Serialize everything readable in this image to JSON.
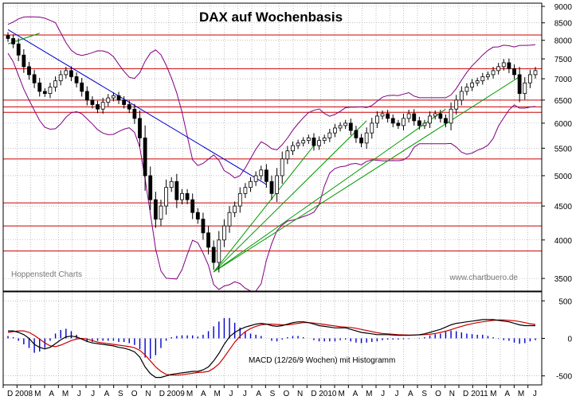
{
  "title": "DAX auf Wochenbasis",
  "watermark_left": "Hoppenstedt Charts",
  "watermark_right": "www.chartbuero.de",
  "macd_label": "MACD (12/26/9 Wochen) mit Histogramm",
  "colors": {
    "price": "#000000",
    "bollinger": "#800080",
    "horizontal_lines": "#cc0000",
    "trend_down": "#0000cc",
    "trend_up": "#009900",
    "macd_line": "#000000",
    "signal_line": "#cc0000",
    "histogram": "#0000cc",
    "grid": "#999999"
  },
  "chart_data": [
    {
      "type": "candlestick",
      "title": "DAX auf Wochenbasis",
      "y_ticks": [
        3500,
        4000,
        4500,
        5000,
        5500,
        6000,
        6500,
        7000,
        7500,
        8000,
        8500,
        9000
      ],
      "ylim": [
        3350,
        9100
      ],
      "x_labels": [
        "D",
        "2008",
        "M",
        "A",
        "M",
        "J",
        "J",
        "A",
        "S",
        "O",
        "N",
        "D",
        "2009",
        "M",
        "A",
        "M",
        "J",
        "J",
        "A",
        "S",
        "O",
        "N",
        "D",
        "2010",
        "M",
        "A",
        "M",
        "J",
        "J",
        "A",
        "S",
        "O",
        "N",
        "D",
        "2011",
        "M",
        "A",
        "M",
        "J"
      ],
      "horizontal_levels": [
        8150,
        7250,
        6500,
        6350,
        6230,
        5300,
        4550,
        4200,
        3850
      ],
      "close_series": [
        8050,
        7900,
        7600,
        7300,
        7100,
        6900,
        6700,
        6650,
        6800,
        6950,
        7100,
        7200,
        7050,
        6900,
        6700,
        6500,
        6400,
        6300,
        6450,
        6550,
        6600,
        6500,
        6400,
        6300,
        6100,
        5700,
        5000,
        4600,
        4300,
        4500,
        4800,
        4900,
        4600,
        4700,
        4600,
        4400,
        4300,
        4100,
        3900,
        3700,
        4000,
        4200,
        4400,
        4500,
        4700,
        4800,
        4900,
        5000,
        5100,
        4900,
        4700,
        5000,
        5300,
        5450,
        5550,
        5600,
        5650,
        5700,
        5550,
        5650,
        5700,
        5800,
        5900,
        5950,
        6000,
        5850,
        5700,
        5600,
        5800,
        6000,
        6150,
        6200,
        6100,
        6000,
        5950,
        6100,
        6200,
        6050,
        5950,
        6000,
        6150,
        6200,
        6100,
        6000,
        6300,
        6500,
        6700,
        6800,
        6900,
        6950,
        7050,
        7100,
        7200,
        7300,
        7400,
        7250,
        7100,
        6650,
        6900,
        7100,
        7200
      ]
    },
    {
      "type": "line",
      "title": "MACD (12/26/9 Wochen) mit Histogramm",
      "y_ticks": [
        -500,
        0,
        500
      ],
      "ylim": [
        -620,
        620
      ],
      "series": [
        {
          "name": "MACD",
          "values": [
            100,
            100,
            80,
            50,
            0,
            -80,
            -120,
            -140,
            -120,
            -70,
            -20,
            20,
            30,
            20,
            -10,
            -40,
            -60,
            -70,
            -80,
            -90,
            -100,
            -120,
            -130,
            -150,
            -180,
            -250,
            -380,
            -470,
            -520,
            -520,
            -500,
            -480,
            -470,
            -460,
            -450,
            -440,
            -440,
            -420,
            -380,
            -300,
            -200,
            -80,
            20,
            80,
            120,
            150,
            170,
            190,
            200,
            190,
            170,
            160,
            170,
            190,
            210,
            220,
            220,
            210,
            190,
            170,
            160,
            150,
            140,
            140,
            140,
            120,
            100,
            80,
            70,
            60,
            50,
            50,
            50,
            45,
            40,
            40,
            40,
            45,
            50,
            60,
            80,
            100,
            120,
            150,
            180,
            200,
            210,
            220,
            230,
            240,
            250,
            250,
            250,
            240,
            230,
            220,
            200,
            180,
            170,
            170,
            170
          ]
        },
        {
          "name": "Signal",
          "values": [
            80,
            90,
            100,
            100,
            80,
            40,
            -10,
            -60,
            -100,
            -110,
            -90,
            -60,
            -30,
            -10,
            0,
            -10,
            -30,
            -50,
            -60,
            -70,
            -80,
            -90,
            -100,
            -110,
            -125,
            -160,
            -220,
            -300,
            -380,
            -440,
            -480,
            -490,
            -490,
            -485,
            -475,
            -465,
            -455,
            -450,
            -440,
            -400,
            -340,
            -250,
            -150,
            -50,
            30,
            90,
            130,
            160,
            180,
            190,
            190,
            185,
            180,
            180,
            190,
            200,
            210,
            210,
            205,
            195,
            185,
            175,
            165,
            155,
            150,
            145,
            135,
            120,
            105,
            90,
            75,
            65,
            60,
            55,
            50,
            47,
            45,
            45,
            46,
            50,
            55,
            65,
            80,
            95,
            115,
            140,
            160,
            180,
            195,
            210,
            220,
            230,
            240,
            245,
            245,
            240,
            235,
            225,
            210,
            195,
            185
          ]
        }
      ]
    }
  ]
}
